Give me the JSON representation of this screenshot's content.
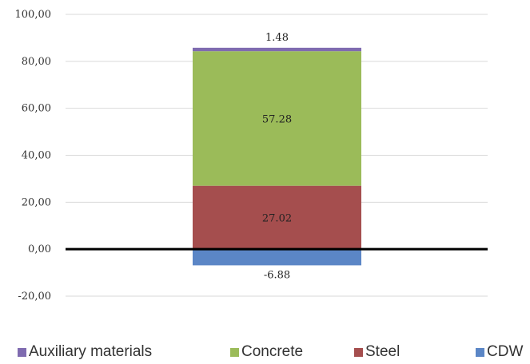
{
  "chart_data": {
    "type": "bar",
    "stacked": true,
    "title": "",
    "xlabel": "",
    "ylabel": "",
    "ylim": [
      -20,
      100
    ],
    "yticks": [
      100,
      80,
      60,
      40,
      20,
      0,
      -20
    ],
    "ytick_labels": [
      "100,00",
      "80,00",
      "60,00",
      "40,00",
      "20,00",
      "0,00",
      "-20,00"
    ],
    "grid": true,
    "legend_position": "bottom",
    "categories": [
      ""
    ],
    "series": [
      {
        "name": "Auxiliary materials",
        "values": [
          1.48
        ],
        "label": "1.48",
        "color": "#7f6bb0"
      },
      {
        "name": "Concrete",
        "values": [
          57.28
        ],
        "label": "57.28",
        "color": "#9bbb59"
      },
      {
        "name": "Steel",
        "values": [
          27.02
        ],
        "label": "27.02",
        "color": "#a54e4e"
      },
      {
        "name": "CDW",
        "values": [
          -6.88
        ],
        "label": "-6.88",
        "color": "#5b86c6"
      }
    ]
  }
}
